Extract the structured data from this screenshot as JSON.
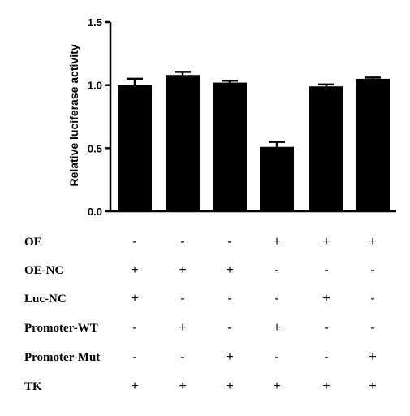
{
  "chart_data": {
    "type": "bar",
    "title": "",
    "xlabel": "",
    "ylabel": "Relative luciferase activity",
    "ylim": [
      0,
      1.5
    ],
    "yticks": [
      "0.0",
      "0.5",
      "1.0",
      "1.5"
    ],
    "grid": false,
    "legend": "none",
    "bar_color": "#000000",
    "values": [
      1.0,
      1.08,
      1.02,
      0.51,
      0.99,
      1.05
    ],
    "errors": [
      0.05,
      0.025,
      0.015,
      0.04,
      0.015,
      0.01
    ]
  },
  "conditions": [
    {
      "label": "OE",
      "marks": [
        "-",
        "-",
        "-",
        "+",
        "+",
        "+"
      ]
    },
    {
      "label": "OE-NC",
      "marks": [
        "+",
        "+",
        "+",
        "-",
        "-",
        "-"
      ]
    },
    {
      "label": "Luc-NC",
      "marks": [
        "+",
        "-",
        "-",
        "-",
        "+",
        "-"
      ]
    },
    {
      "label": "Promoter-WT",
      "marks": [
        "-",
        "+",
        "-",
        "+",
        "-",
        "-"
      ]
    },
    {
      "label": "Promoter-Mut",
      "marks": [
        "-",
        "-",
        "+",
        "-",
        "-",
        "+"
      ]
    },
    {
      "label": "TK",
      "marks": [
        "+",
        "+",
        "+",
        "+",
        "+",
        "+"
      ]
    }
  ]
}
